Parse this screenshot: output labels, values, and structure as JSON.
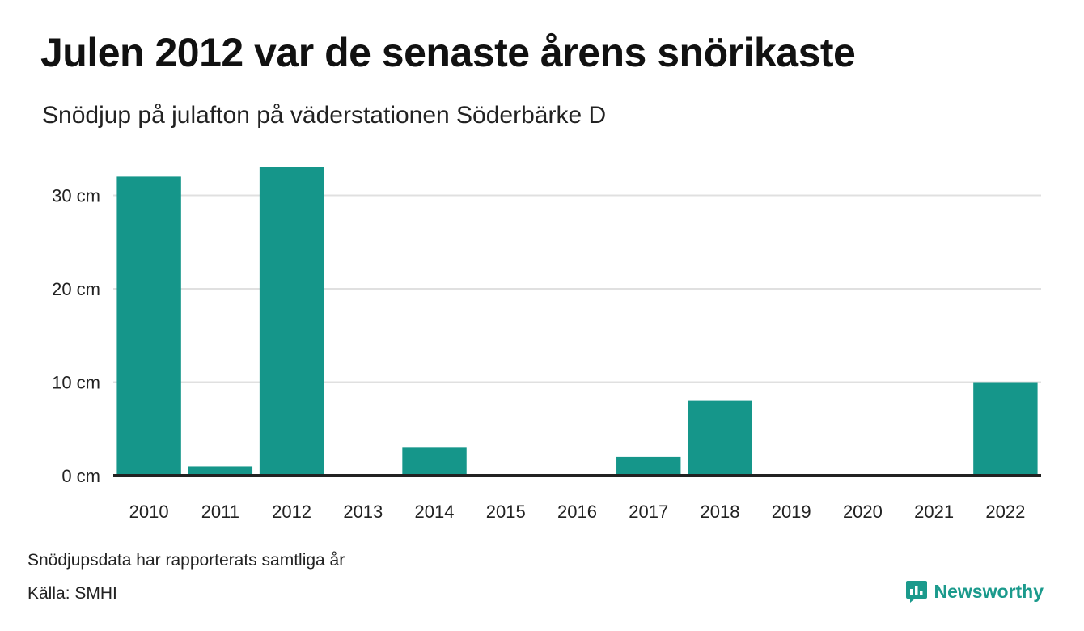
{
  "header": {
    "title": "Julen 2012 var de senaste årens snörikaste",
    "subtitle": "Snödjup på julafton på väderstationen Söderbärke D"
  },
  "footer": {
    "note": "Snödjupsdata har rapporterats samtliga år",
    "source": "Källa: SMHI",
    "brand": "Newsworthy"
  },
  "colors": {
    "bar": "#15968a",
    "grid": "#e0e0e0",
    "baseline": "#222222",
    "brand": "#1b9a8c"
  },
  "icons": {
    "brand_logo": "newsworthy-bar-chart-icon"
  },
  "chart_data": {
    "type": "bar",
    "title": "Julen 2012 var de senaste årens snörikaste",
    "subtitle": "Snödjup på julafton på väderstationen Söderbärke D",
    "categories": [
      "2010",
      "2011",
      "2012",
      "2013",
      "2014",
      "2015",
      "2016",
      "2017",
      "2018",
      "2019",
      "2020",
      "2021",
      "2022"
    ],
    "values": [
      32,
      1,
      33,
      0,
      3,
      0,
      0,
      2,
      8,
      0,
      0,
      0,
      10
    ],
    "unit": "cm",
    "yticks": [
      0,
      10,
      20,
      30
    ],
    "ytick_labels": [
      "0 cm",
      "10 cm",
      "20 cm",
      "30 cm"
    ],
    "ylim": [
      0,
      34
    ],
    "grid": true,
    "legend": "none"
  }
}
